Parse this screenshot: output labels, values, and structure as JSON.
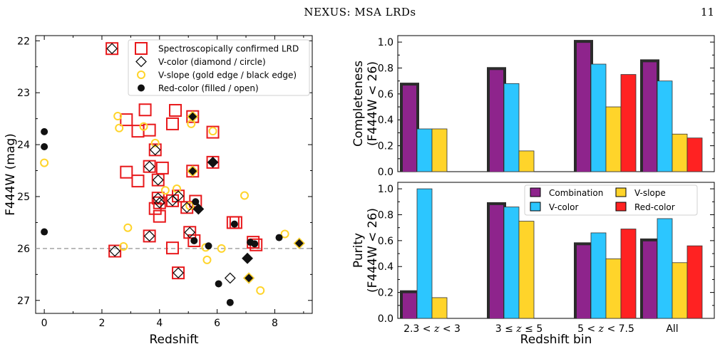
{
  "header": {
    "running_title": "NEXUS: MSA LRDs",
    "page_number": "11"
  },
  "colors": {
    "red": "#e8191c",
    "gold": "#ffd42a",
    "black": "#111111",
    "combination": "#8e248c",
    "vcolor": "#2cc6ff",
    "vslope": "#ffd42a",
    "redcolor": "#ff2222",
    "edge": "#2b2b2b",
    "dashed": "#a5a5a5"
  },
  "chart_data": [
    {
      "type": "scatter",
      "title": "",
      "xlabel": "Redshift",
      "ylabel": "F444W (mag)",
      "xlim": [
        -0.3,
        9.3
      ],
      "ylim": [
        27.25,
        21.9
      ],
      "y_inverted": true,
      "xticks": [
        0,
        2,
        4,
        6,
        8
      ],
      "yticks": [
        22,
        23,
        24,
        25,
        26,
        27
      ],
      "reference_line": {
        "y": 26.0,
        "style": "dashed"
      },
      "legend": {
        "position": "top-right",
        "entries": [
          {
            "label": "Spectroscopically confirmed LRD",
            "marker": "open-square-red"
          },
          {
            "label": "V-color (diamond / circle)",
            "marker": "open-diamond-black"
          },
          {
            "label": "V-slope (gold edge / black edge)",
            "marker": "open-circle-gold"
          },
          {
            "label": "Red-color (filled / open)",
            "marker": "filled-circle-black"
          }
        ]
      },
      "series": [
        {
          "label": "Spectroscopically confirmed LRD",
          "marker": "square",
          "points": [
            [
              2.35,
              22.15
            ],
            [
              2.45,
              26.05
            ],
            [
              2.85,
              23.52
            ],
            [
              2.85,
              24.53
            ],
            [
              3.25,
              23.74
            ],
            [
              3.25,
              24.7
            ],
            [
              3.5,
              23.33
            ],
            [
              3.65,
              23.72
            ],
            [
              3.65,
              24.42
            ],
            [
              3.65,
              25.76
            ],
            [
              3.85,
              24.1
            ],
            [
              3.95,
              24.68
            ],
            [
              3.95,
              25.03
            ],
            [
              3.85,
              25.23
            ],
            [
              4.0,
              25.12
            ],
            [
              4.0,
              25.38
            ],
            [
              4.1,
              24.45
            ],
            [
              4.45,
              23.6
            ],
            [
              4.55,
              23.34
            ],
            [
              4.45,
              25.08
            ],
            [
              4.65,
              24.99
            ],
            [
              4.45,
              25.99
            ],
            [
              4.65,
              26.47
            ],
            [
              4.95,
              25.21
            ],
            [
              5.05,
              25.69
            ],
            [
              5.15,
              23.46
            ],
            [
              5.15,
              24.51
            ],
            [
              5.25,
              25.09
            ],
            [
              5.2,
              25.85
            ],
            [
              5.85,
              23.76
            ],
            [
              5.85,
              24.34
            ],
            [
              6.55,
              25.5
            ],
            [
              6.65,
              25.5
            ],
            [
              7.25,
              25.88
            ],
            [
              7.35,
              25.93
            ]
          ]
        },
        {
          "label": "V-color diamond",
          "marker": "open-diamond",
          "points": [
            [
              2.35,
              22.15
            ],
            [
              2.45,
              26.05
            ],
            [
              3.65,
              24.42
            ],
            [
              3.65,
              25.76
            ],
            [
              3.85,
              24.1
            ],
            [
              3.95,
              24.68
            ],
            [
              3.95,
              25.03
            ],
            [
              4.0,
              25.12
            ],
            [
              4.45,
              25.08
            ],
            [
              4.65,
              24.99
            ],
            [
              4.65,
              26.47
            ],
            [
              4.95,
              25.21
            ],
            [
              5.05,
              25.69
            ],
            [
              6.45,
              26.57
            ]
          ]
        },
        {
          "label": "V-color diamond filled",
          "marker": "filled-diamond",
          "points": [
            [
              5.15,
              23.46
            ],
            [
              5.15,
              24.51
            ],
            [
              5.85,
              24.34
            ],
            [
              5.35,
              25.24
            ],
            [
              7.05,
              26.19
            ],
            [
              7.1,
              26.57
            ],
            [
              8.85,
              25.9
            ]
          ]
        },
        {
          "label": "V-slope",
          "marker": "open-circle-gold",
          "points": [
            [
              0.0,
              24.35
            ],
            [
              2.55,
              23.45
            ],
            [
              2.6,
              23.68
            ],
            [
              2.75,
              25.96
            ],
            [
              2.9,
              25.6
            ],
            [
              3.45,
              23.65
            ],
            [
              3.85,
              23.97
            ],
            [
              4.2,
              24.88
            ],
            [
              4.6,
              24.85
            ],
            [
              5.05,
              25.18
            ],
            [
              5.1,
              23.6
            ],
            [
              5.6,
              25.98
            ],
            [
              5.65,
              26.22
            ],
            [
              5.85,
              23.74
            ],
            [
              6.15,
              26.0
            ],
            [
              6.95,
              24.98
            ],
            [
              7.5,
              26.81
            ],
            [
              8.35,
              25.72
            ]
          ]
        },
        {
          "label": "Red-color filled",
          "marker": "filled-circle",
          "points": [
            [
              0.0,
              23.75
            ],
            [
              0.0,
              24.04
            ],
            [
              0.0,
              25.68
            ],
            [
              5.2,
              25.85
            ],
            [
              5.25,
              25.1
            ],
            [
              5.7,
              25.95
            ],
            [
              6.05,
              26.68
            ],
            [
              6.45,
              27.04
            ],
            [
              6.6,
              25.53
            ],
            [
              7.15,
              25.88
            ],
            [
              7.3,
              25.91
            ],
            [
              8.15,
              25.79
            ]
          ]
        }
      ]
    },
    {
      "type": "bar",
      "title": "",
      "xlabel": "",
      "ylabel": "Completeness\n(F444W < 26)",
      "ylim": [
        0,
        1.05
      ],
      "yticks": [
        "0.0",
        "0.2",
        "0.4",
        "0.6",
        "0.8",
        "1.0"
      ],
      "categories": [
        "2.3 < z < 3",
        "3 ≤ z ≤ 5",
        "5 < z < 7.5",
        "All"
      ],
      "series": [
        {
          "name": "Combination",
          "values": [
            0.67,
            0.79,
            1.0,
            0.85
          ]
        },
        {
          "name": "V-color",
          "values": [
            0.33,
            0.68,
            0.83,
            0.7
          ]
        },
        {
          "name": "V-slope",
          "values": [
            0.33,
            0.16,
            0.5,
            0.29
          ]
        },
        {
          "name": "Red-color",
          "values": [
            0.0,
            0.0,
            0.75,
            0.26
          ]
        }
      ]
    },
    {
      "type": "bar",
      "title": "",
      "xlabel": "Redshift bin",
      "ylabel": "Purity\n(F444W < 26)",
      "ylim": [
        0,
        1.05
      ],
      "yticks": [
        "0.0",
        "0.2",
        "0.4",
        "0.6",
        "0.8",
        "1.0"
      ],
      "categories": [
        "2.3 < z < 3",
        "3 ≤ z ≤ 5",
        "5 < z < 7.5",
        "All"
      ],
      "legend": {
        "position": "top-right",
        "columns": 2
      },
      "series": [
        {
          "name": "Combination",
          "values": [
            0.2,
            0.88,
            0.57,
            0.6
          ]
        },
        {
          "name": "V-color",
          "values": [
            1.0,
            0.86,
            0.66,
            0.77
          ]
        },
        {
          "name": "V-slope",
          "values": [
            0.16,
            0.75,
            0.46,
            0.43
          ]
        },
        {
          "name": "Red-color",
          "values": [
            0.0,
            0.0,
            0.69,
            0.56
          ]
        }
      ]
    }
  ]
}
